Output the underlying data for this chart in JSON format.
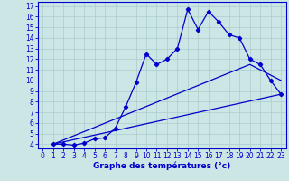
{
  "xlabel": "Graphe des températures (°c)",
  "bg_color": "#cce5e5",
  "line_color": "#0000cc",
  "grid_color": "#aacccc",
  "xlim": [
    -0.5,
    23.5
  ],
  "ylim": [
    3.6,
    17.4
  ],
  "xticks": [
    0,
    1,
    2,
    3,
    4,
    5,
    6,
    7,
    8,
    9,
    10,
    11,
    12,
    13,
    14,
    15,
    16,
    17,
    18,
    19,
    20,
    21,
    22,
    23
  ],
  "yticks": [
    4,
    5,
    6,
    7,
    8,
    9,
    10,
    11,
    12,
    13,
    14,
    15,
    16,
    17
  ],
  "main_x": [
    1,
    2,
    3,
    4,
    5,
    6,
    7,
    8,
    9,
    10,
    11,
    12,
    13,
    14,
    15,
    16,
    17,
    18,
    19,
    20,
    21,
    22,
    23
  ],
  "main_y": [
    4.0,
    4.0,
    3.9,
    4.1,
    4.5,
    4.6,
    5.5,
    7.5,
    9.8,
    12.5,
    11.5,
    12.0,
    13.0,
    16.7,
    14.8,
    16.5,
    15.5,
    14.3,
    14.0,
    12.0,
    11.5,
    10.0,
    8.7
  ],
  "line2_x": [
    1,
    23
  ],
  "line2_y": [
    4.0,
    8.7
  ],
  "line3_x": [
    1,
    20,
    23
  ],
  "line3_y": [
    4.0,
    11.5,
    10.0
  ],
  "tick_fontsize": 5.5,
  "xlabel_fontsize": 6.5
}
